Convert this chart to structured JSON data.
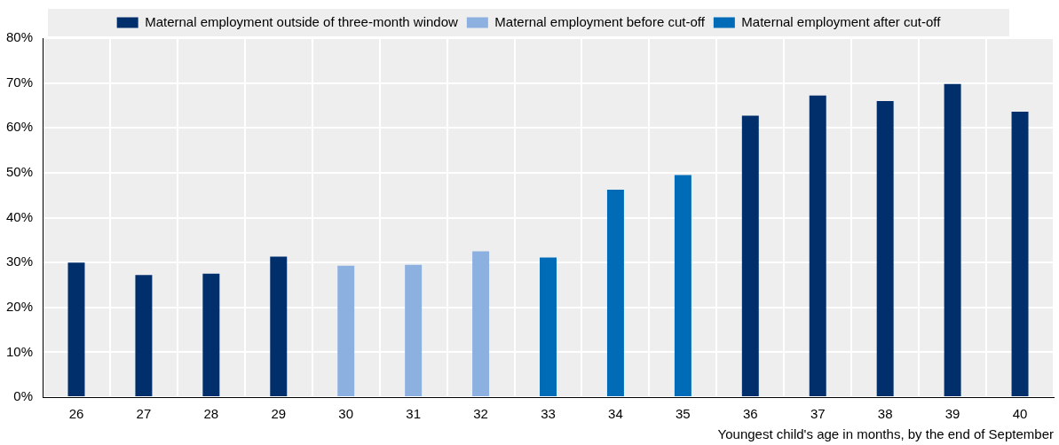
{
  "chart_data": {
    "type": "bar",
    "xlabel": "Youngest child's age in months, by the end of September",
    "categories": [
      "26",
      "27",
      "28",
      "29",
      "30",
      "31",
      "32",
      "33",
      "34",
      "35",
      "36",
      "37",
      "38",
      "39",
      "40"
    ],
    "series": [
      {
        "name": "Maternal employment outside of three-month window",
        "color": "#002f6c",
        "values": [
          30,
          27.2,
          27.5,
          31.3,
          null,
          null,
          null,
          null,
          null,
          null,
          62.7,
          67.2,
          66,
          69.8,
          63.6
        ]
      },
      {
        "name": "Maternal employment before cut-off",
        "color": "#8cb0e0",
        "values": [
          null,
          null,
          null,
          null,
          29.3,
          29.5,
          32.5,
          null,
          null,
          null,
          null,
          null,
          null,
          null,
          null
        ]
      },
      {
        "name": "Maternal employment after cut-off",
        "color": "#006bb6",
        "values": [
          null,
          null,
          null,
          null,
          null,
          null,
          null,
          31.1,
          46.2,
          49.5,
          null,
          null,
          null,
          null,
          null
        ]
      }
    ],
    "ylim": [
      0,
      80
    ],
    "yticks": [
      {
        "value": 0,
        "label": "0%"
      },
      {
        "value": 10,
        "label": "10%"
      },
      {
        "value": 20,
        "label": "20%"
      },
      {
        "value": 30,
        "label": "30%"
      },
      {
        "value": 40,
        "label": "40%"
      },
      {
        "value": 50,
        "label": "50%"
      },
      {
        "value": 60,
        "label": "60%"
      },
      {
        "value": 70,
        "label": "70%"
      },
      {
        "value": 80,
        "label": "80%"
      }
    ],
    "grid": true,
    "legend": "top"
  }
}
